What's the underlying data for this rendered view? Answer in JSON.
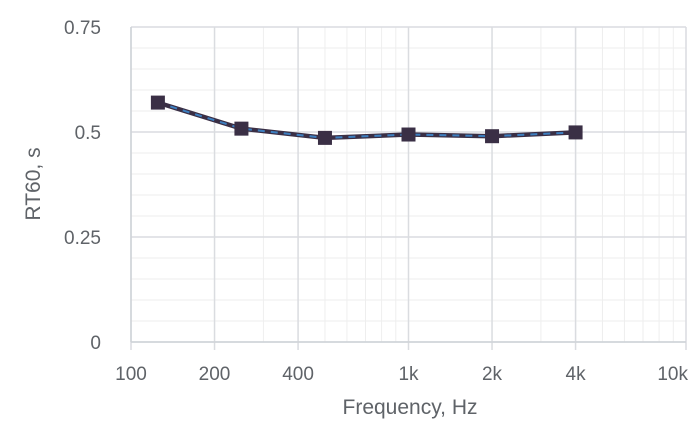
{
  "chart_data": {
    "type": "line",
    "xscale": "log",
    "xlim": [
      100,
      10000
    ],
    "ylim": [
      0,
      0.75
    ],
    "xlabel": "Frequency, Hz",
    "ylabel": "RT60, s",
    "x_ticks": [
      {
        "value": 100,
        "label": "100"
      },
      {
        "value": 200,
        "label": "200"
      },
      {
        "value": 400,
        "label": "400"
      },
      {
        "value": 1000,
        "label": "1k"
      },
      {
        "value": 2000,
        "label": "2k"
      },
      {
        "value": 4000,
        "label": "4k"
      },
      {
        "value": 10000,
        "label": "10k"
      }
    ],
    "y_ticks": [
      {
        "value": 0,
        "label": "0"
      },
      {
        "value": 0.25,
        "label": "0.25"
      },
      {
        "value": 0.5,
        "label": "0.5"
      },
      {
        "value": 0.75,
        "label": "0.75"
      }
    ],
    "grid": true,
    "legend": "none",
    "series": [
      {
        "x": [
          125,
          250,
          500,
          1000,
          2000,
          4000
        ],
        "values": [
          0.57,
          0.508,
          0.486,
          0.494,
          0.49,
          0.499
        ],
        "color": "#3a2f45",
        "dash_color": "#3d7fc0",
        "marker": "square"
      }
    ]
  }
}
